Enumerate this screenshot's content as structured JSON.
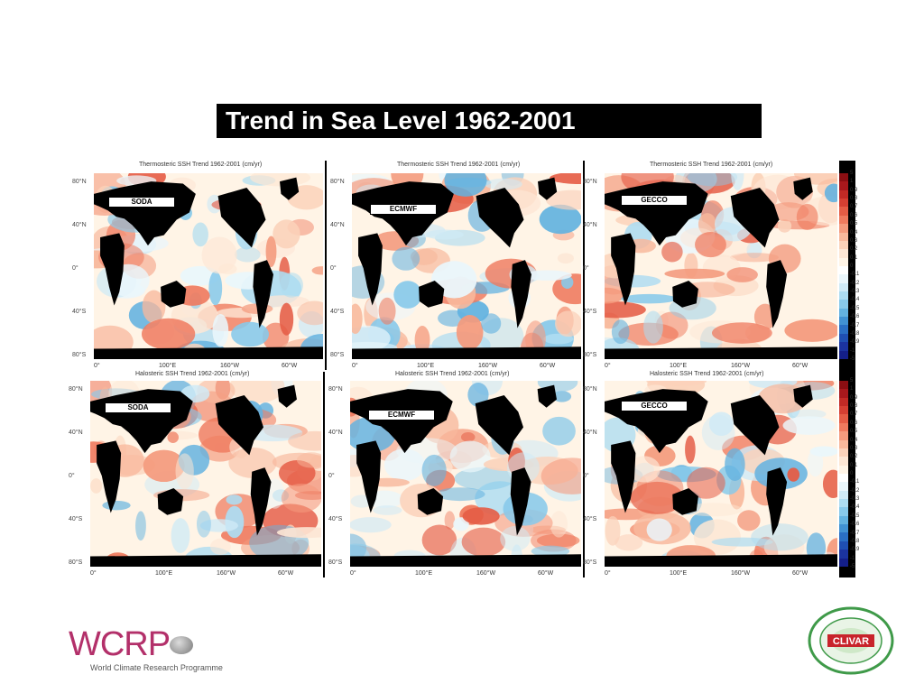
{
  "slide": {
    "title": "Trend in  Sea Level 1962-2001"
  },
  "rows": [
    {
      "panels": [
        {
          "title": "Thermosteric SSH Trend 1962-2001 (cm/yr)",
          "label": "SODA"
        },
        {
          "title": "Thermosteric SSH Trend 1962-2001 (cm/yr)",
          "label": "ECMWF"
        },
        {
          "title": "Thermosteric SSH Trend 1962-2001 (cm/yr)",
          "label": "GECCO"
        }
      ]
    },
    {
      "panels": [
        {
          "title": "Halosteric SSH Trend 1962-2001 (cm/yr)",
          "label": "SODA"
        },
        {
          "title": "Halosteric SSH Trend 1962-2001 (cm/yr)",
          "label": "ECMWF"
        },
        {
          "title": "Halosteric SSH Trend 1962-2001 (cm/yr)",
          "label": "GECCO"
        }
      ]
    }
  ],
  "lat_ticks": [
    "80°N",
    "40°N",
    "0°",
    "40°S",
    "80°S"
  ],
  "lon_ticks": [
    "0°",
    "100°E",
    "160°W",
    "60°W"
  ],
  "colorbar": {
    "ticks": [
      "5",
      "1",
      "0.9",
      "0.8",
      "0.7",
      "0.6",
      "0.5",
      "0.4",
      "0.3",
      "0.2",
      "0.1",
      "0",
      "-0.1",
      "-0.2",
      "-0.3",
      "-0.4",
      "-0.5",
      "-0.6",
      "-0.7",
      "-0.8",
      "-0.9",
      "-1",
      "-5"
    ],
    "colors": [
      "#8b0e12",
      "#a8181c",
      "#c22a25",
      "#d63f32",
      "#e55c45",
      "#ef7a5e",
      "#f49a7d",
      "#f8b89c",
      "#fbd2ba",
      "#fde6d4",
      "#fff4e6",
      "#ffffff",
      "#eaf6fb",
      "#cfeaf6",
      "#addcf1",
      "#88c9ea",
      "#63b2e0",
      "#4192d3",
      "#2a6fc4",
      "#1f4fb2",
      "#1b33a0",
      "#141f8a"
    ]
  },
  "logos": {
    "wcrp_word": "WCRP",
    "wcrp_subtitle": "World Climate Research Programme",
    "clivar_word": "CLIVAR",
    "clivar_ring": "Climate Variability & Predictability — World Climate Research Programme"
  }
}
